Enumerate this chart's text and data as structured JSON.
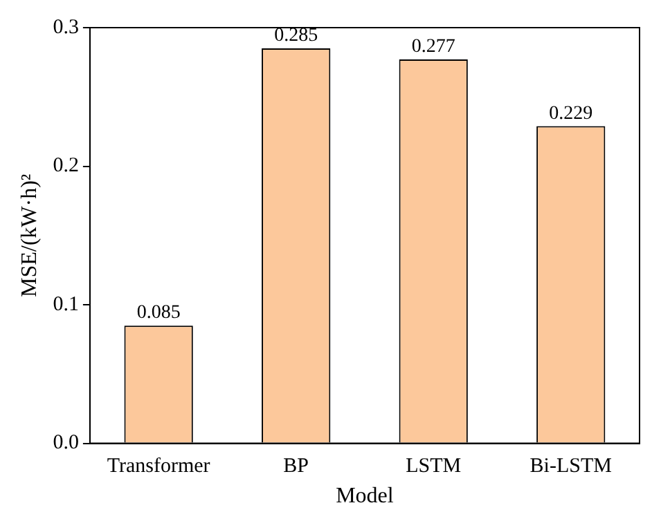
{
  "chart_data": {
    "type": "bar",
    "xlabel": "Model",
    "ylabel": "MSE/(kW·h)²",
    "categories": [
      "Transformer",
      "BP",
      "LSTM",
      "Bi-LSTM"
    ],
    "values": [
      0.085,
      0.285,
      0.277,
      0.229
    ],
    "color": "#fcc89b",
    "ylim": [
      0,
      0.3
    ],
    "yticks": [
      {
        "value": 0,
        "label": "0.0"
      },
      0.1,
      0.2,
      0.3
    ],
    "data_labels": true,
    "grid": false,
    "legend": false
  }
}
